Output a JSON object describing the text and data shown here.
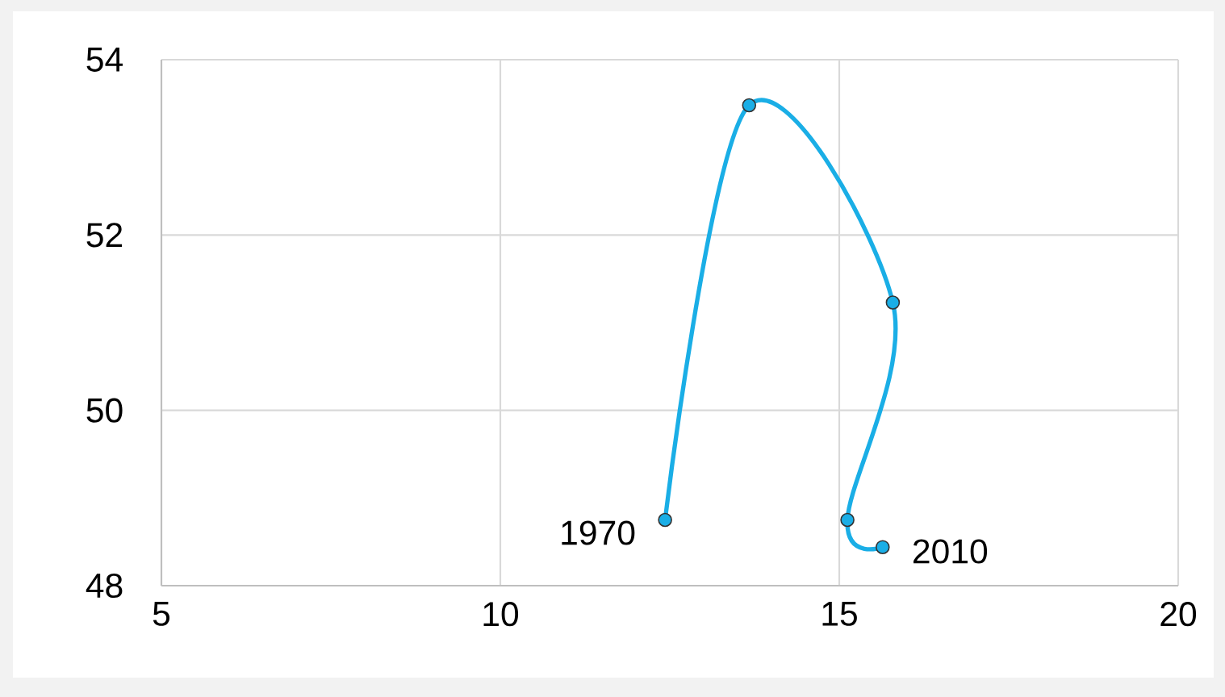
{
  "chart_data": {
    "type": "line",
    "series": [
      {
        "color": "#1aaee6",
        "x": [
          12.43,
          13.67,
          15.79,
          15.12,
          15.64
        ],
        "values": [
          48.75,
          53.48,
          51.23,
          48.75,
          48.44
        ]
      }
    ],
    "xlim": [
      5,
      20
    ],
    "xticks": [
      5,
      10,
      15,
      20
    ],
    "ylim": [
      48,
      54
    ],
    "yticks": [
      48,
      50,
      52,
      54
    ],
    "grid": true,
    "marker": "circle",
    "line_style": "solid",
    "annotations": [
      {
        "text": "1970",
        "x": 12.43,
        "y": 48.75
      },
      {
        "text": "2010",
        "x": 15.64,
        "y": 48.44
      }
    ]
  }
}
